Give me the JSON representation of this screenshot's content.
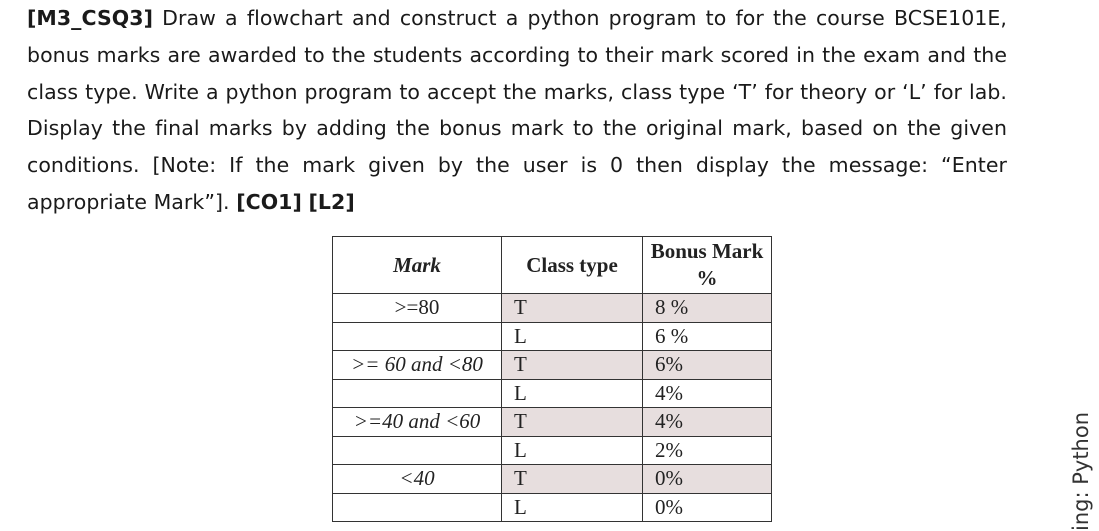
{
  "question": {
    "tag": "[M3_CSQ3]",
    "text": " Draw a flowchart and construct a python program to for the course BCSE101E, bonus marks are awarded to the students according to their mark scored in the exam and the class type. Write a python program to accept the marks, class type ‘T’ for theory or ‘L’ for lab. Display the final marks by adding the bonus mark to the original mark, based on the given conditions. [Note: If the mark given by the user is 0 then display the message: “Enter appropriate Mark”]. ",
    "co": "[CO1]",
    "level": "[L2]"
  },
  "table": {
    "headers": [
      "Mark",
      "Class type",
      "Bonus Mark %"
    ],
    "rows": [
      {
        "mark": ">=80",
        "class_type": "T",
        "bonus": "8 %"
      },
      {
        "mark": "",
        "class_type": "L",
        "bonus": "6 %"
      },
      {
        "mark": ">= 60 and <80",
        "class_type": "T",
        "bonus": "6%"
      },
      {
        "mark": "",
        "class_type": "L",
        "bonus": "4%"
      },
      {
        "mark": ">=40 and <60",
        "class_type": "T",
        "bonus": "4%"
      },
      {
        "mark": "",
        "class_type": "L",
        "bonus": "2%"
      },
      {
        "mark": "<40",
        "class_type": "T",
        "bonus": "0%"
      },
      {
        "mark": "",
        "class_type": "L",
        "bonus": "0%"
      }
    ]
  },
  "side_text": "ing: Python"
}
